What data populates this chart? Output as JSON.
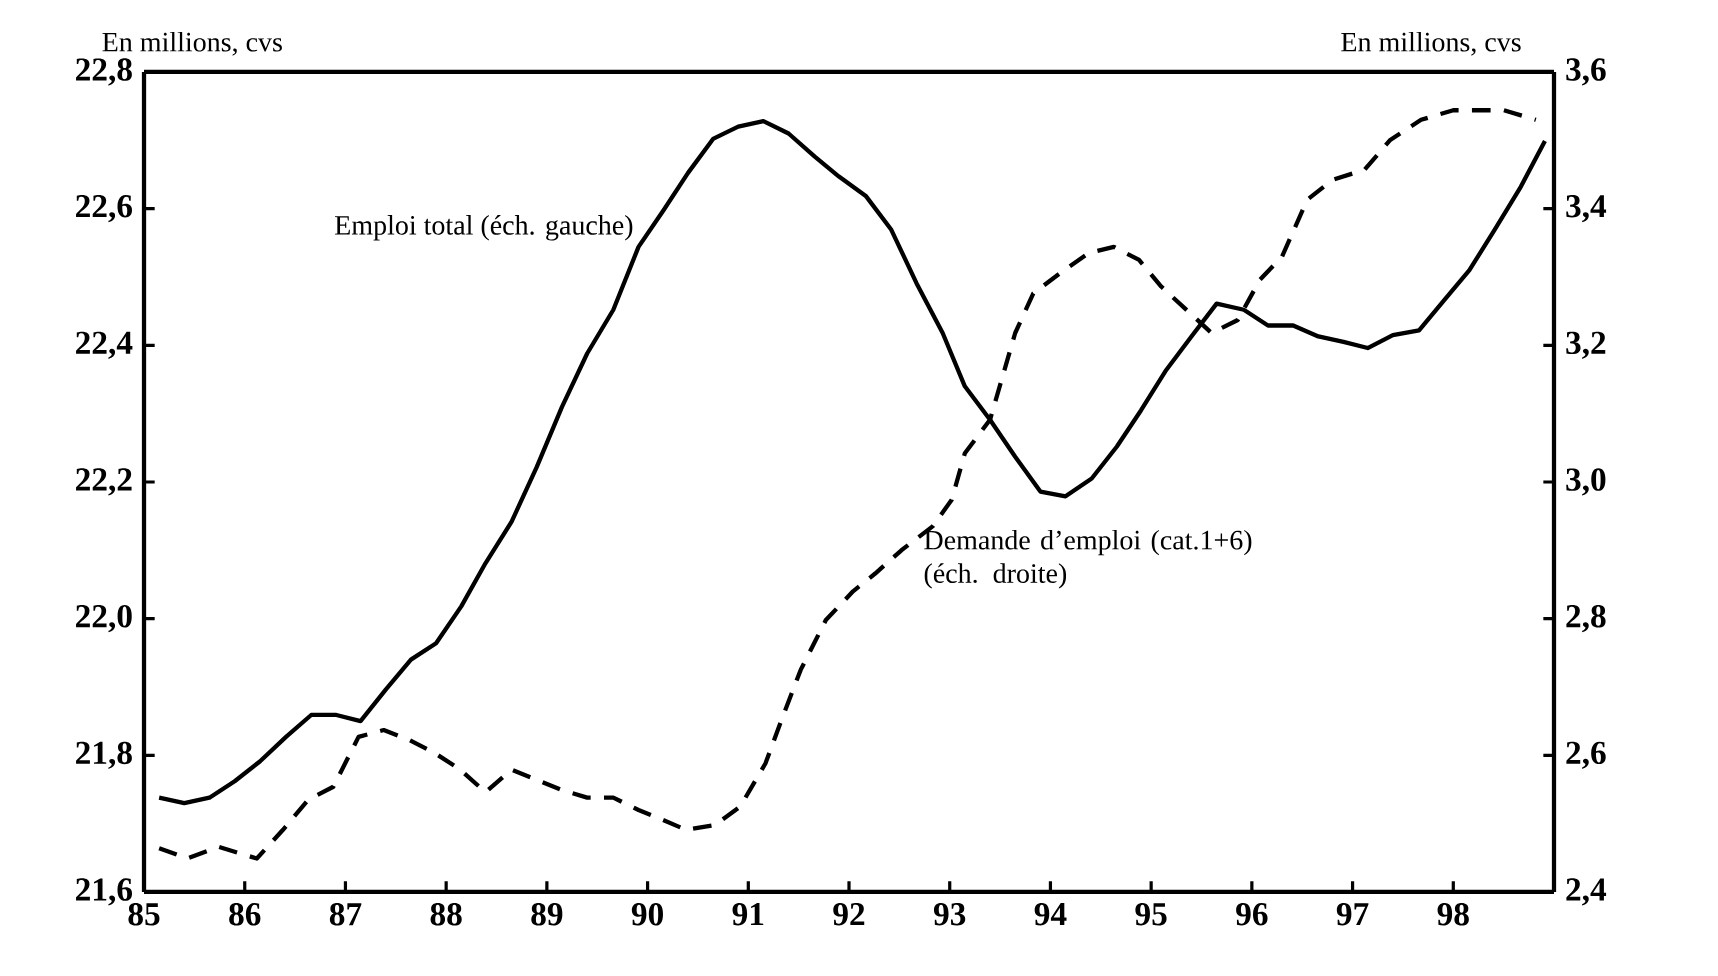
{
  "chart_data": {
    "type": "line",
    "ylabel": "En millions, cvs",
    "y2label": "En millions, cvs",
    "xlim": [
      85,
      99
    ],
    "xticks": [
      85,
      86,
      87,
      88,
      89,
      90,
      91,
      92,
      93,
      94,
      95,
      96,
      97,
      98
    ],
    "ylim": [
      21.6,
      22.8
    ],
    "yticks": [
      {
        "value": 21.6,
        "label": "21,6"
      },
      {
        "value": 21.8,
        "label": "21,8"
      },
      {
        "value": 22.0,
        "label": "22,0"
      },
      {
        "value": 22.2,
        "label": "22,2"
      },
      {
        "value": 22.4,
        "label": "22,4"
      },
      {
        "value": 22.6,
        "label": "22,6"
      },
      {
        "value": 22.8,
        "label": "22,8"
      }
    ],
    "y2lim": [
      2.4,
      3.6
    ],
    "y2ticks": [
      {
        "value": 2.4,
        "label": "2,4"
      },
      {
        "value": 2.6,
        "label": "2,6"
      },
      {
        "value": 2.8,
        "label": "2,8"
      },
      {
        "value": 3.0,
        "label": "3,0"
      },
      {
        "value": 3.2,
        "label": "3,2"
      },
      {
        "value": 3.4,
        "label": "3,4"
      },
      {
        "value": 3.6,
        "label": "3,6"
      }
    ],
    "marker": "none",
    "series": [
      {
        "name": "Emploi total (éch. gauche)",
        "color": "#000000",
        "line_style": "solid",
        "x": [
          85.15,
          85.4,
          85.65,
          85.9,
          86.15,
          86.41,
          86.66,
          86.91,
          87.15,
          87.4,
          87.65,
          87.9,
          88.15,
          88.39,
          88.65,
          88.9,
          89.15,
          89.4,
          89.66,
          89.91,
          90.16,
          90.4,
          90.65,
          90.9,
          91.15,
          91.4,
          91.66,
          91.9,
          92.17,
          92.42,
          92.67,
          92.93,
          93.15,
          93.4,
          93.65,
          93.9,
          94.15,
          94.41,
          94.66,
          94.9,
          95.15,
          95.4,
          95.65,
          95.92,
          96.16,
          96.41,
          96.66,
          96.91,
          97.15,
          97.4,
          97.66,
          97.91,
          98.16,
          98.41,
          98.67,
          98.91
        ],
        "values": [
          21.738,
          21.73,
          21.738,
          21.762,
          21.791,
          21.827,
          21.859,
          21.859,
          21.85,
          21.896,
          21.94,
          21.964,
          22.018,
          22.081,
          22.142,
          22.222,
          22.31,
          22.388,
          22.452,
          22.544,
          22.598,
          22.652,
          22.702,
          22.72,
          22.728,
          22.71,
          22.676,
          22.647,
          22.618,
          22.569,
          22.491,
          22.418,
          22.34,
          22.291,
          22.237,
          22.186,
          22.179,
          22.205,
          22.252,
          22.305,
          22.364,
          22.413,
          22.461,
          22.452,
          22.429,
          22.429,
          22.413,
          22.405,
          22.396,
          22.415,
          22.422,
          22.466,
          22.51,
          22.569,
          22.632,
          22.699
        ]
      },
      {
        "name": "Demande d’emploi (cat.1+6) (éch. droite)",
        "color": "#000000",
        "line_style": "dashed",
        "axis": "y2",
        "x": [
          85.15,
          85.43,
          85.74,
          86.12,
          86.38,
          86.63,
          86.88,
          87.13,
          87.38,
          87.64,
          87.89,
          88.14,
          88.39,
          88.65,
          88.9,
          89.15,
          89.4,
          89.66,
          89.91,
          90.16,
          90.38,
          90.67,
          90.92,
          91.17,
          91.33,
          91.52,
          91.77,
          92.04,
          92.26,
          92.52,
          92.83,
          93.02,
          93.15,
          93.4,
          93.65,
          93.83,
          94.09,
          94.38,
          94.63,
          94.88,
          95.1,
          95.35,
          95.6,
          95.86,
          96.08,
          96.3,
          96.55,
          96.8,
          97.12,
          97.37,
          97.68,
          98.0,
          98.25,
          98.5,
          98.82
        ],
        "values": [
          2.464,
          2.449,
          2.466,
          2.449,
          2.491,
          2.535,
          2.554,
          2.627,
          2.637,
          2.622,
          2.603,
          2.579,
          2.546,
          2.579,
          2.564,
          2.549,
          2.538,
          2.538,
          2.52,
          2.505,
          2.491,
          2.498,
          2.525,
          2.588,
          2.652,
          2.725,
          2.798,
          2.84,
          2.866,
          2.9,
          2.935,
          2.974,
          3.042,
          3.091,
          3.218,
          3.276,
          3.305,
          3.335,
          3.344,
          3.325,
          3.286,
          3.252,
          3.218,
          3.237,
          3.296,
          3.33,
          3.413,
          3.442,
          3.457,
          3.5,
          3.53,
          3.544,
          3.544,
          3.544,
          3.53
        ]
      }
    ]
  }
}
